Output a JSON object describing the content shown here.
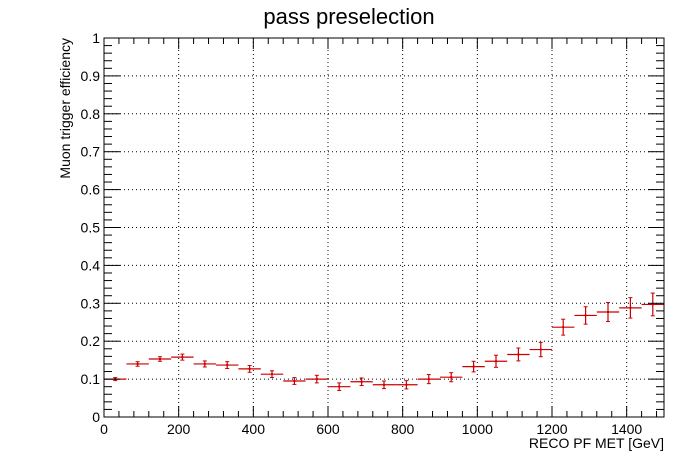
{
  "chart_data": {
    "type": "scatter",
    "title": "pass preselection",
    "xlabel": "RECO PF MET [GeV]",
    "ylabel": "Muon trigger efficiency",
    "xlim": [
      0,
      1500
    ],
    "ylim": [
      0,
      1
    ],
    "grid": true,
    "marker_color": "#cc0000",
    "x_ticks": [
      "0",
      "200",
      "400",
      "600",
      "800",
      "1000",
      "1200",
      "1400"
    ],
    "y_ticks": [
      "0",
      "0.1",
      "0.2",
      "0.3",
      "0.4",
      "0.5",
      "0.6",
      "0.7",
      "0.8",
      "0.9",
      "1"
    ],
    "x_bin_width": 60,
    "x": [
      30,
      90,
      150,
      210,
      270,
      330,
      390,
      450,
      510,
      570,
      630,
      690,
      750,
      810,
      870,
      930,
      990,
      1050,
      1110,
      1170,
      1230,
      1290,
      1350,
      1410,
      1470
    ],
    "y": [
      0.1,
      0.14,
      0.153,
      0.158,
      0.14,
      0.137,
      0.127,
      0.113,
      0.095,
      0.1,
      0.08,
      0.093,
      0.085,
      0.085,
      0.1,
      0.105,
      0.133,
      0.147,
      0.165,
      0.178,
      0.237,
      0.268,
      0.277,
      0.288,
      0.297
    ],
    "yerr": [
      0.004,
      0.006,
      0.006,
      0.008,
      0.008,
      0.009,
      0.009,
      0.009,
      0.009,
      0.01,
      0.01,
      0.01,
      0.01,
      0.011,
      0.012,
      0.012,
      0.014,
      0.016,
      0.017,
      0.019,
      0.021,
      0.023,
      0.025,
      0.027,
      0.03
    ]
  }
}
